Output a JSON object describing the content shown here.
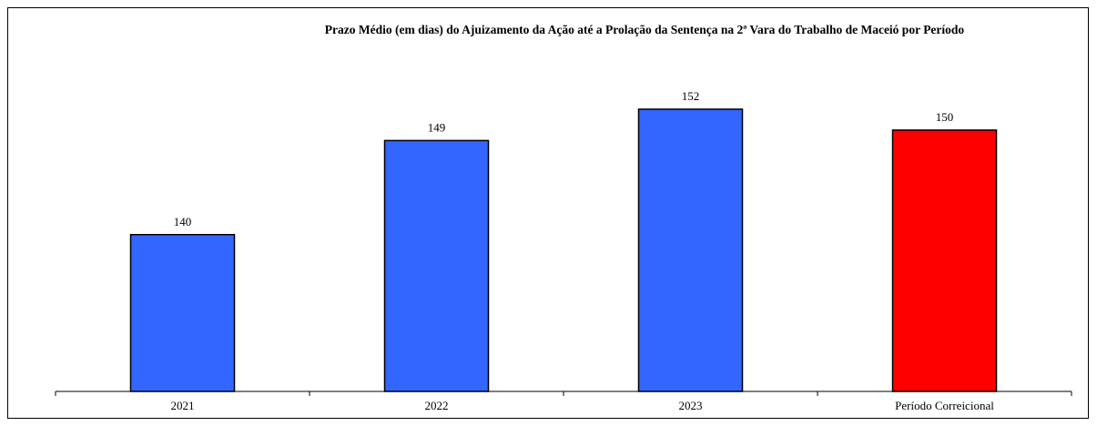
{
  "chart_data": {
    "type": "bar",
    "title": "Prazo Médio (em dias) do Ajuizamento da Ação até a Prolação da Sentença na 2ª Vara do Trabalho de Maceió por Período",
    "categories": [
      "2021",
      "2022",
      "2023",
      "Período Correicional"
    ],
    "values": [
      140,
      149,
      152,
      150
    ],
    "data_labels": [
      "140",
      "149",
      "152",
      "150"
    ],
    "colors": [
      "#3366ff",
      "#3366ff",
      "#3366ff",
      "#ff0000"
    ],
    "ylim": [
      125,
      154
    ],
    "grid": false,
    "legend": "none",
    "y_axis_visible": false
  }
}
